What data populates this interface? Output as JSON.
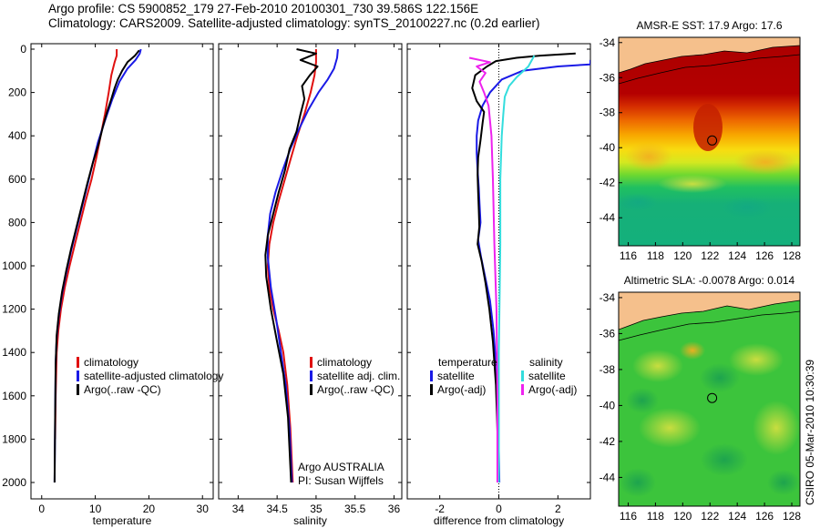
{
  "header": {
    "line1": "Argo profile: CS 5900852_179 27-Feb-2010 20100301_730 39.586S 122.156E",
    "line2": "Climatology: CARS2009. Satellite-adjusted climatology: synTS_20100227.nc (0.2d earlier)"
  },
  "side_stamp": "CSIRO 05-Mar-2010 10:30:39",
  "colors": {
    "climatology": "#e01010",
    "satellite": "#1a1ae6",
    "argo": "#000000",
    "cyan": "#33dddd",
    "magenta": "#ee22ee",
    "land": "#f5c08c"
  },
  "chart_data": [
    {
      "type": "line",
      "panel": "temperature",
      "xlabel": "temperature",
      "ylabel": "",
      "ylim": [
        2050,
        0
      ],
      "xlim": [
        -2,
        32
      ],
      "xticks": [
        0,
        10,
        20,
        30
      ],
      "yticks": [
        0,
        200,
        400,
        600,
        800,
        1000,
        1200,
        1400,
        1600,
        1800,
        2000
      ],
      "legend_items": [
        "climatology",
        "satellite-adjusted climatology",
        "Argo(..raw -QC)"
      ],
      "series": [
        {
          "name": "climatology",
          "color_key": "climatology",
          "x": [
            14,
            14,
            13.6,
            13,
            12.5,
            11.8,
            11,
            10.2,
            9.3,
            8.2,
            7.2,
            6.2,
            5.2,
            4.3,
            3.6,
            3.1,
            2.8,
            2.6,
            2.5
          ],
          "y": [
            0,
            30,
            60,
            120,
            200,
            300,
            400,
            500,
            600,
            700,
            800,
            900,
            1000,
            1100,
            1200,
            1300,
            1400,
            1600,
            1800
          ]
        },
        {
          "name": "satellite-adjusted climatology",
          "color_key": "satellite",
          "x": [
            18.5,
            18.3,
            17.5,
            16,
            14.5,
            13.2,
            11.8,
            10.5,
            9.5,
            8.5,
            7.5,
            6.5,
            5.5,
            4.6,
            3.8,
            3.2,
            2.8,
            2.6,
            2.5,
            2.4
          ],
          "y": [
            0,
            20,
            50,
            90,
            150,
            230,
            330,
            430,
            530,
            630,
            730,
            830,
            930,
            1030,
            1130,
            1230,
            1330,
            1450,
            1700,
            2000
          ]
        },
        {
          "name": "Argo(..raw -QC)",
          "color_key": "argo",
          "x": [
            18.2,
            17.4,
            16,
            15,
            14.2,
            13.6,
            13,
            12.2,
            11.4,
            10.6,
            9.6,
            8.5,
            7.5,
            6.5,
            5.5,
            4.6,
            3.8,
            3.2,
            2.8,
            2.6,
            2.5,
            2.4
          ],
          "y": [
            5,
            30,
            60,
            100,
            140,
            180,
            230,
            290,
            360,
            440,
            520,
            620,
            720,
            820,
            920,
            1020,
            1120,
            1220,
            1320,
            1450,
            1700,
            2000
          ]
        }
      ]
    },
    {
      "type": "line",
      "panel": "salinity",
      "xlabel": "salinity",
      "ylabel": "",
      "ylim": [
        2050,
        0
      ],
      "xlim": [
        33.75,
        36.1
      ],
      "xticks": [
        34,
        34.5,
        35,
        35.5,
        36
      ],
      "legend_items": [
        "climatology",
        "satellite adj. clim.",
        "Argo(..raw -QC)"
      ],
      "annotations": [
        "Argo AUSTRALIA",
        "PI: Susan Wijffels"
      ],
      "series": [
        {
          "name": "climatology",
          "color_key": "climatology",
          "x": [
            35.0,
            35.0,
            34.98,
            34.93,
            34.85,
            34.76,
            34.68,
            34.6,
            34.52,
            34.45,
            34.4,
            34.38,
            34.4,
            34.45,
            34.52,
            34.58,
            34.63,
            34.67,
            34.7
          ],
          "y": [
            0,
            60,
            120,
            200,
            300,
            400,
            500,
            600,
            700,
            800,
            900,
            1000,
            1100,
            1200,
            1300,
            1400,
            1550,
            1750,
            2000
          ]
        },
        {
          "name": "satellite adj. clim.",
          "color_key": "satellite",
          "x": [
            35.28,
            35.27,
            35.23,
            35.15,
            35.03,
            34.9,
            34.78,
            34.67,
            34.57,
            34.48,
            34.41,
            34.38,
            34.38,
            34.42,
            34.49,
            34.55,
            34.61,
            34.66,
            34.69
          ],
          "y": [
            0,
            40,
            90,
            140,
            200,
            280,
            370,
            460,
            560,
            660,
            760,
            860,
            960,
            1100,
            1250,
            1400,
            1550,
            1750,
            2000
          ]
        },
        {
          "name": "Argo(..raw -QC)",
          "color_key": "argo",
          "x": [
            34.75,
            35.0,
            34.8,
            35.02,
            34.92,
            34.82,
            34.85,
            34.8,
            34.75,
            34.66,
            34.6,
            34.52,
            34.45,
            34.38,
            34.35,
            34.36,
            34.42,
            34.5,
            34.58,
            34.64,
            34.68
          ],
          "y": [
            0,
            20,
            50,
            80,
            120,
            170,
            230,
            300,
            380,
            460,
            560,
            660,
            760,
            860,
            950,
            1050,
            1200,
            1350,
            1500,
            1700,
            2000
          ]
        }
      ]
    },
    {
      "type": "line",
      "panel": "difference",
      "xlabel": "difference from climatology",
      "ylabel": "",
      "ylim": [
        2050,
        0
      ],
      "xlim": [
        -3.1,
        3.1
      ],
      "xticks": [
        -2,
        0,
        2
      ],
      "legend_groups": {
        "temperature": [
          "satellite",
          "Argo(-adj)"
        ],
        "salinity": [
          "satellite",
          "Argo(-adj)"
        ]
      },
      "series": [
        {
          "name": "temperature satellite",
          "color_key": "satellite",
          "x": [
            3.1,
            3.1,
            2.0,
            0.8,
            0.1,
            -0.3,
            -0.55,
            -0.7,
            -0.75,
            -0.75,
            -0.72,
            -0.68,
            -0.65,
            -0.62,
            -0.7,
            -0.6,
            -0.45,
            -0.3,
            -0.18,
            -0.1,
            -0.05,
            0,
            0.02
          ],
          "y": [
            50,
            70,
            80,
            100,
            140,
            200,
            260,
            330,
            400,
            480,
            560,
            640,
            720,
            800,
            880,
            960,
            1060,
            1160,
            1300,
            1450,
            1650,
            1850,
            2000
          ]
        },
        {
          "name": "temperature Argo(-adj)",
          "color_key": "argo",
          "x": [
            2.6,
            1.4,
            0.6,
            -0.1,
            -0.4,
            -0.8,
            -0.9,
            -0.75,
            -0.5,
            -0.55,
            -0.62,
            -0.7,
            -0.72,
            -0.7,
            -0.68,
            -0.66,
            -0.72,
            -0.58,
            -0.45,
            -0.32,
            -0.2,
            -0.1,
            -0.05,
            0
          ],
          "y": [
            20,
            30,
            40,
            55,
            80,
            120,
            180,
            240,
            290,
            340,
            420,
            500,
            580,
            660,
            740,
            820,
            900,
            980,
            1080,
            1200,
            1350,
            1550,
            1750,
            2000
          ]
        },
        {
          "name": "salinity satellite",
          "color_key": "cyan",
          "x": [
            1.2,
            1.0,
            0.6,
            0.35,
            0.2,
            0.15,
            0.1,
            0.05,
            0.05,
            0.03,
            0,
            0
          ],
          "y": [
            30,
            80,
            130,
            170,
            220,
            300,
            400,
            600,
            900,
            1100,
            1400,
            2000
          ]
        },
        {
          "name": "salinity Argo(-adj)",
          "color_key": "magenta",
          "x": [
            -1.0,
            -0.3,
            -0.75,
            -0.45,
            -0.65,
            -0.5,
            -0.35,
            -0.25,
            -0.2,
            -0.15,
            -0.08,
            -0.05,
            -0.05
          ],
          "y": [
            40,
            60,
            80,
            110,
            150,
            200,
            260,
            400,
            600,
            900,
            1200,
            1600,
            2000
          ]
        }
      ]
    },
    {
      "type": "heatmap",
      "panel": "sst_map",
      "title": "AMSR-E SST: 17.9 Argo: 17.6",
      "xticks": [
        116,
        118,
        120,
        122,
        124,
        126,
        128
      ],
      "yticks": [
        -34,
        -36,
        -38,
        -40,
        -42,
        -44
      ],
      "xlim": [
        115.3,
        128.6
      ],
      "ylim": [
        -45.6,
        -33.7
      ],
      "marker": {
        "lon": 122.156,
        "lat": -39.586
      }
    },
    {
      "type": "heatmap",
      "panel": "sla_map",
      "title": "Altimetric SLA: -0.0078 Argo: 0.014",
      "xticks": [
        116,
        118,
        120,
        122,
        124,
        126,
        128
      ],
      "yticks": [
        -34,
        -36,
        -38,
        -40,
        -42,
        -44
      ],
      "xlim": [
        115.3,
        128.6
      ],
      "ylim": [
        -45.6,
        -33.7
      ],
      "marker": {
        "lon": 122.156,
        "lat": -39.586
      }
    }
  ]
}
